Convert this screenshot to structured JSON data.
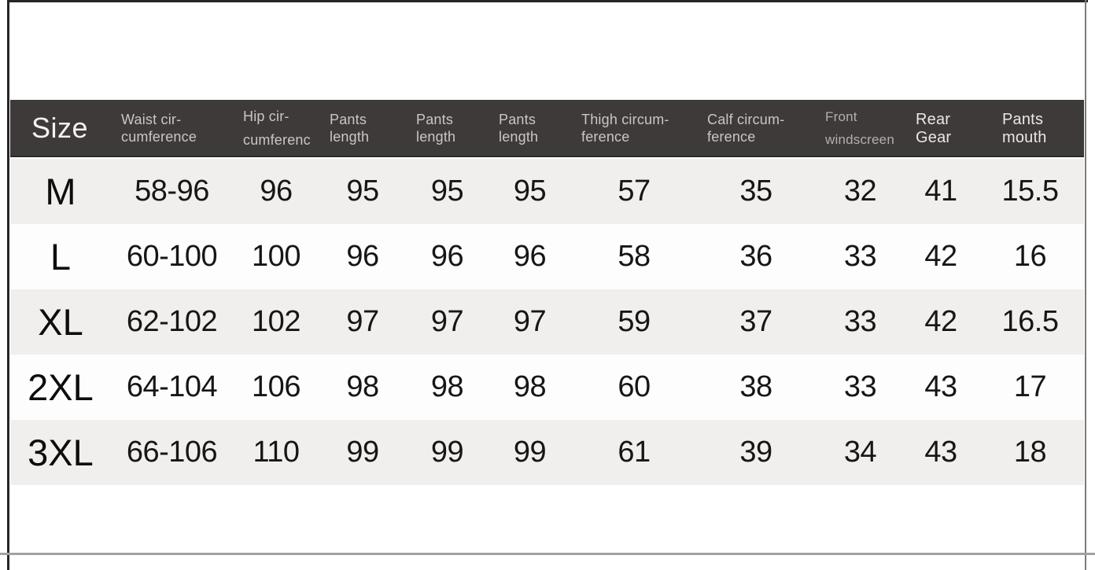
{
  "table": {
    "columns": [
      {
        "id": "size",
        "line1": "Size",
        "line2": ""
      },
      {
        "id": "waist",
        "line1": "Waist cir-",
        "line2": "cumference"
      },
      {
        "id": "hip",
        "line1": "Hip cir-",
        "line2": "cumferenc"
      },
      {
        "id": "pants_length_1",
        "line1": "Pants",
        "line2": "length"
      },
      {
        "id": "pants_length_2",
        "line1": "Pants",
        "line2": "length"
      },
      {
        "id": "pants_length_3",
        "line1": "Pants",
        "line2": "length"
      },
      {
        "id": "thigh",
        "line1": "Thigh circum-",
        "line2": "ference"
      },
      {
        "id": "calf",
        "line1": "Calf circum-",
        "line2": "ference"
      },
      {
        "id": "front_windscreen",
        "line1": "Front",
        "line2": "windscreen"
      },
      {
        "id": "rear_gear",
        "line1": "Rear",
        "line2": "Gear"
      },
      {
        "id": "pants_mouth",
        "line1": "Pants",
        "line2": "mouth"
      }
    ],
    "rows": [
      {
        "size": "M",
        "cells": [
          "58-96",
          "96",
          "95",
          "95",
          "95",
          "57",
          "35",
          "32",
          "41",
          "15.5"
        ]
      },
      {
        "size": "L",
        "cells": [
          "60-100",
          "100",
          "96",
          "96",
          "96",
          "58",
          "36",
          "33",
          "42",
          "16"
        ]
      },
      {
        "size": "XL",
        "cells": [
          "62-102",
          "102",
          "97",
          "97",
          "97",
          "59",
          "37",
          "33",
          "42",
          "16.5"
        ]
      },
      {
        "size": "2XL",
        "cells": [
          "64-104",
          "106",
          "98",
          "98",
          "98",
          "60",
          "38",
          "33",
          "43",
          "17"
        ]
      },
      {
        "size": "3XL",
        "cells": [
          "66-106",
          "110",
          "99",
          "99",
          "99",
          "61",
          "39",
          "34",
          "43",
          "18"
        ]
      }
    ]
  },
  "colors": {
    "header_bg": "#3d3a39",
    "header_text": "#c9c6c3",
    "header_text_bright": "#eae8e6",
    "row_stripe": "#f1efee",
    "row_white": "#fdfdfd",
    "data_text": "#161616",
    "frame_border": "#262626",
    "bottom_rule": "#a3a1a1"
  }
}
